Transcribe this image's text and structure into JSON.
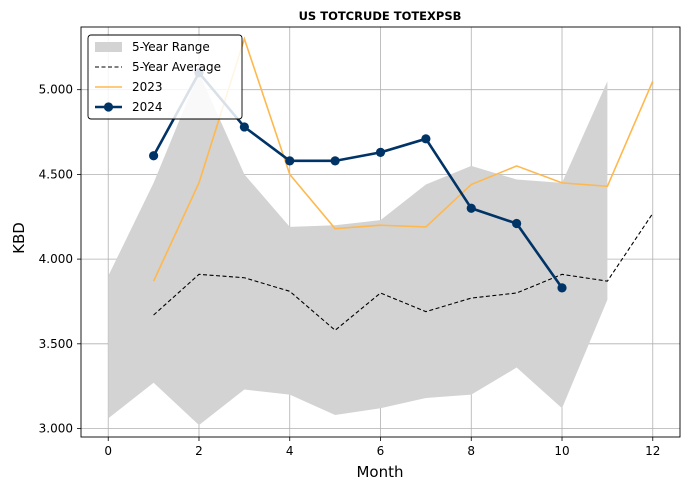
{
  "chart_data": {
    "type": "line",
    "title": "US TOTCRUDE TOTEXPSB",
    "xlabel": "Month",
    "ylabel": "KBD",
    "xlim": [
      -0.6,
      12.6
    ],
    "ylim": [
      2.95,
      5.37
    ],
    "xticks": [
      0,
      2,
      4,
      6,
      8,
      10,
      12
    ],
    "xtick_labels": [
      "0",
      "2",
      "4",
      "6",
      "8",
      "10",
      "12"
    ],
    "yticks": [
      3.0,
      3.5,
      4.0,
      4.5,
      5.0
    ],
    "ytick_labels": [
      "3.000",
      "3.500",
      "4.000",
      "4.500",
      "5.000"
    ],
    "grid": true,
    "legend_position": "top-left",
    "range": {
      "name": "5-Year Range",
      "color": "#d3d3d3",
      "x": [
        0,
        1,
        2,
        3,
        4,
        5,
        6,
        7,
        8,
        9,
        10,
        11
      ],
      "min": [
        3.06,
        3.27,
        3.02,
        3.23,
        3.2,
        3.08,
        3.12,
        3.18,
        3.2,
        3.36,
        3.12,
        3.76
      ],
      "max": [
        3.9,
        4.45,
        5.1,
        4.5,
        4.19,
        4.2,
        4.23,
        4.44,
        4.55,
        4.47,
        4.45,
        5.05
      ]
    },
    "series": [
      {
        "name": "5-Year Average",
        "color": "#000000",
        "style": "dashed",
        "x": [
          1,
          2,
          3,
          4,
          5,
          6,
          7,
          8,
          9,
          10,
          11,
          12
        ],
        "values": [
          3.67,
          3.91,
          3.89,
          3.81,
          3.58,
          3.8,
          3.69,
          3.77,
          3.8,
          3.91,
          3.87,
          4.27
        ]
      },
      {
        "name": "2023",
        "color": "#ffb84d",
        "style": "solid",
        "x": [
          1,
          2,
          3,
          4,
          5,
          6,
          7,
          8,
          9,
          10,
          11,
          12
        ],
        "values": [
          3.87,
          4.45,
          5.3,
          4.5,
          4.18,
          4.2,
          4.19,
          4.44,
          4.55,
          4.45,
          4.43,
          5.05
        ]
      },
      {
        "name": "2024",
        "color": "#003366",
        "style": "solid-markers",
        "x": [
          1,
          2,
          3,
          4,
          5,
          6,
          7,
          8,
          9,
          10
        ],
        "values": [
          4.61,
          5.1,
          4.78,
          4.58,
          4.58,
          4.63,
          4.71,
          4.3,
          4.21,
          3.83
        ]
      }
    ]
  }
}
